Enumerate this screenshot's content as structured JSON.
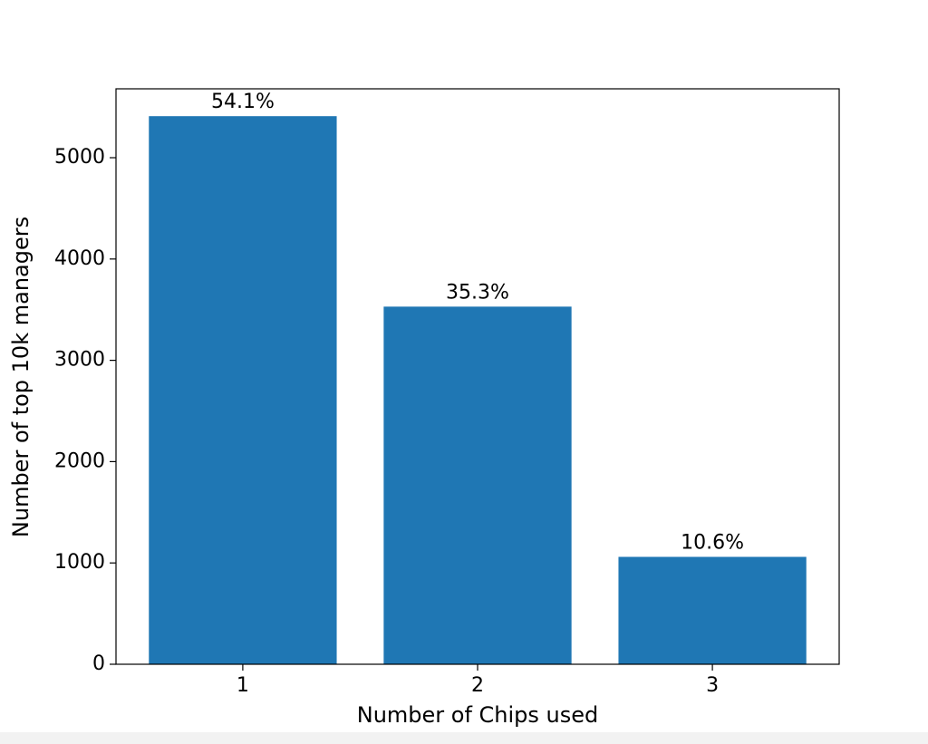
{
  "chart_data": {
    "type": "bar",
    "x_label": "Number of Chips used",
    "y_label": "Number of top 10k managers",
    "categories": [
      "1",
      "2",
      "3"
    ],
    "values": [
      5410,
      3530,
      1060
    ],
    "value_labels": [
      "54.1%",
      "35.3%",
      "10.6%"
    ],
    "color": "#1f77b4",
    "ylim": [
      0,
      5680
    ],
    "yticks": [
      0,
      1000,
      2000,
      3000,
      4000,
      5000
    ],
    "grid": false
  }
}
